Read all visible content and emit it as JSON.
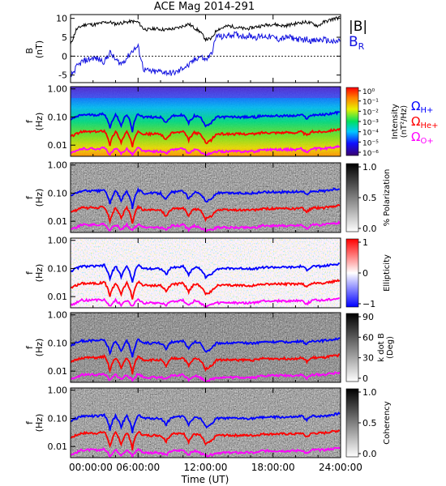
{
  "title": "ACE Mag 2014-291",
  "xaxis": {
    "label": "Time (UT)",
    "tick_labels": [
      "00:00:00",
      "06:00:00",
      "12:00:00",
      "18:00:00",
      "24:00:00"
    ],
    "tick_hours": [
      0,
      6,
      12,
      18,
      24
    ],
    "range_hours": [
      0,
      24
    ]
  },
  "colors": {
    "B": "#000000",
    "BR": "#1010e0",
    "H": "#0000ff",
    "He": "#ff0000",
    "O": "#ff00ff"
  },
  "chart_data": [
    {
      "type": "line",
      "panel": "field",
      "ylabel": "B\n(nT)",
      "ylim": [
        -7,
        11
      ],
      "yticks": [
        10,
        5,
        0,
        -5
      ],
      "legend": [
        "|B|",
        "B_R"
      ],
      "series": [
        {
          "name": "|B|",
          "x": [
            0,
            0.5,
            1,
            1.5,
            2,
            2.5,
            3,
            3.5,
            4,
            4.5,
            5,
            5.5,
            6,
            6.5,
            7,
            7.5,
            8,
            8.5,
            9,
            9.5,
            10,
            10.5,
            11,
            11.5,
            12,
            12.5,
            13,
            13.5,
            14,
            14.5,
            15,
            15.5,
            16,
            16.5,
            17,
            17.5,
            18,
            18.5,
            19,
            19.5,
            20,
            20.5,
            21,
            21.5,
            22,
            22.5,
            23,
            23.5,
            24
          ],
          "values": [
            3.0,
            7.0,
            8.0,
            8.5,
            8.3,
            8.6,
            8.9,
            9.0,
            8.5,
            8.8,
            9.0,
            9.2,
            9.0,
            7.2,
            7.0,
            7.3,
            7.1,
            7.0,
            7.2,
            7.4,
            8.0,
            8.5,
            7.5,
            6.5,
            4.5,
            4.5,
            7.0,
            7.5,
            8.0,
            7.8,
            7.5,
            7.2,
            7.4,
            7.8,
            8.0,
            8.3,
            8.5,
            8.2,
            8.0,
            8.3,
            8.6,
            8.9,
            9.0,
            8.6,
            8.0,
            9.0,
            9.5,
            10.0,
            10.2
          ]
        },
        {
          "name": "B_R",
          "x": [
            0,
            0.5,
            1,
            1.5,
            2,
            2.5,
            3,
            3.5,
            4,
            4.5,
            5,
            5.5,
            6,
            6.5,
            7,
            7.5,
            8,
            8.5,
            9,
            9.5,
            10,
            10.5,
            11,
            11.5,
            12,
            12.5,
            13,
            13.5,
            14,
            14.5,
            15,
            15.5,
            16,
            16.5,
            17,
            17.5,
            18,
            18.5,
            19,
            19.5,
            20,
            20.5,
            21,
            21.5,
            22,
            22.5,
            23,
            23.5,
            24
          ],
          "values": [
            -5.5,
            -3.0,
            -1.5,
            -1.0,
            -0.5,
            -0.8,
            -1.5,
            1.0,
            -1.0,
            -2.0,
            -0.5,
            1.5,
            2.5,
            -3.5,
            -4.0,
            -4.2,
            -4.0,
            -4.3,
            -4.5,
            -4.2,
            -3.0,
            -2.5,
            -1.0,
            0.0,
            -1.0,
            0.5,
            5.5,
            5.0,
            5.5,
            5.8,
            5.5,
            5.3,
            5.4,
            5.0,
            5.3,
            5.2,
            5.0,
            4.5,
            4.8,
            5.0,
            4.6,
            4.3,
            4.5,
            4.0,
            4.2,
            4.4,
            4.0,
            3.6,
            4.3
          ]
        }
      ]
    },
    {
      "type": "heatmap",
      "panel": "intensity",
      "ylabel": "f\n(Hz)",
      "ylim_log": [
        0.004,
        1.2
      ],
      "yticks": [
        "1.00",
        "0.10",
        "0.01"
      ],
      "colorbar": {
        "label": "Intensity (nT²/Hz)",
        "tick_labels": [
          "10⁰",
          "10⁻¹",
          "10⁻²",
          "10⁻³",
          "10⁻⁴",
          "10⁻⁵",
          "10⁻⁶"
        ],
        "scale": "rainbow"
      },
      "overlays": [
        "Ω_H+",
        "Ω_He+",
        "Ω_O+"
      ]
    },
    {
      "type": "heatmap",
      "panel": "polarization",
      "ylabel": "f\n(Hz)",
      "yticks": [
        "1.00",
        "0.10",
        "0.01"
      ],
      "colorbar": {
        "label": "% Polarization",
        "tick_labels": [
          "1.0",
          "0.5",
          "0.0"
        ],
        "scale": "gray"
      }
    },
    {
      "type": "heatmap",
      "panel": "ellipticity",
      "ylabel": "f\n(Hz)",
      "yticks": [
        "1.00",
        "0.10",
        "0.01"
      ],
      "colorbar": {
        "label": "Ellipticity",
        "tick_labels": [
          "1",
          "0",
          "−1"
        ],
        "scale": "red-white-blue"
      }
    },
    {
      "type": "heatmap",
      "panel": "kdotb",
      "ylabel": "f\n(Hz)",
      "yticks": [
        "1.00",
        "0.10",
        "0.01"
      ],
      "colorbar": {
        "label": "k dot B\n(Deg)",
        "tick_labels": [
          "90",
          "60",
          "30",
          "0"
        ],
        "scale": "gray"
      }
    },
    {
      "type": "heatmap",
      "panel": "coherency",
      "ylabel": "f\n(Hz)",
      "yticks": [
        "1.00",
        "0.10",
        "0.01"
      ],
      "colorbar": {
        "label": "Coherency",
        "tick_labels": [
          "1.0",
          "0.5",
          "0.0"
        ],
        "scale": "gray"
      }
    },
    {
      "type": "line",
      "panel": "gyrofrequencies",
      "note_units": "Hz",
      "series": [
        {
          "name": "Ω_H+",
          "x": [
            0,
            0.5,
            1,
            1.5,
            2,
            2.5,
            3,
            3.5,
            4,
            4.5,
            5,
            5.5,
            6,
            6.5,
            7,
            7.5,
            8,
            8.5,
            9,
            9.5,
            10,
            10.5,
            11,
            11.5,
            12,
            12.5,
            13,
            13.5,
            14,
            14.5,
            15,
            15.5,
            16,
            16.5,
            17,
            17.5,
            18,
            18.5,
            19,
            19.5,
            20,
            20.5,
            21,
            21.5,
            22,
            22.5,
            23,
            23.5,
            24
          ],
          "values": [
            0.08,
            0.1,
            0.12,
            0.12,
            0.12,
            0.12,
            0.13,
            0.04,
            0.12,
            0.05,
            0.12,
            0.03,
            0.13,
            0.1,
            0.1,
            0.1,
            0.1,
            0.06,
            0.11,
            0.11,
            0.12,
            0.06,
            0.11,
            0.1,
            0.05,
            0.06,
            0.1,
            0.1,
            0.1,
            0.1,
            0.1,
            0.1,
            0.1,
            0.1,
            0.11,
            0.11,
            0.11,
            0.11,
            0.11,
            0.11,
            0.11,
            0.12,
            0.09,
            0.12,
            0.12,
            0.12,
            0.13,
            0.14,
            0.15
          ]
        },
        {
          "name": "Ω_He+",
          "x": [
            0,
            0.5,
            1,
            1.5,
            2,
            2.5,
            3,
            3.5,
            4,
            4.5,
            5,
            5.5,
            6,
            6.5,
            7,
            7.5,
            8,
            8.5,
            9,
            9.5,
            10,
            10.5,
            11,
            11.5,
            12,
            12.5,
            13,
            13.5,
            14,
            14.5,
            15,
            15.5,
            16,
            16.5,
            17,
            17.5,
            18,
            18.5,
            19,
            19.5,
            20,
            20.5,
            21,
            21.5,
            22,
            22.5,
            23,
            23.5,
            24
          ],
          "values": [
            0.02,
            0.025,
            0.03,
            0.03,
            0.03,
            0.03,
            0.033,
            0.01,
            0.03,
            0.012,
            0.03,
            0.008,
            0.033,
            0.025,
            0.025,
            0.025,
            0.025,
            0.015,
            0.028,
            0.028,
            0.03,
            0.015,
            0.028,
            0.025,
            0.012,
            0.015,
            0.025,
            0.025,
            0.025,
            0.025,
            0.025,
            0.025,
            0.025,
            0.025,
            0.028,
            0.028,
            0.028,
            0.028,
            0.028,
            0.028,
            0.028,
            0.03,
            0.022,
            0.03,
            0.03,
            0.03,
            0.033,
            0.035,
            0.038
          ]
        },
        {
          "name": "Ω_O+",
          "x": [
            0,
            0.5,
            1,
            1.5,
            2,
            2.5,
            3,
            3.5,
            4,
            4.5,
            5,
            5.5,
            6,
            6.5,
            7,
            7.5,
            8,
            8.5,
            9,
            9.5,
            10,
            10.5,
            11,
            11.5,
            12,
            12.5,
            13,
            13.5,
            14,
            14.5,
            15,
            15.5,
            16,
            16.5,
            17,
            17.5,
            18,
            18.5,
            19,
            19.5,
            20,
            20.5,
            21,
            21.5,
            22,
            22.5,
            23,
            23.5,
            24
          ],
          "values": [
            0.005,
            0.006,
            0.0075,
            0.0075,
            0.0075,
            0.0075,
            0.008,
            0.0045,
            0.0075,
            0.005,
            0.0075,
            0.0045,
            0.008,
            0.006,
            0.006,
            0.006,
            0.006,
            0.005,
            0.007,
            0.007,
            0.0075,
            0.005,
            0.007,
            0.006,
            0.0045,
            0.005,
            0.006,
            0.006,
            0.006,
            0.006,
            0.006,
            0.006,
            0.006,
            0.006,
            0.007,
            0.007,
            0.007,
            0.007,
            0.007,
            0.007,
            0.007,
            0.0075,
            0.0055,
            0.0075,
            0.0075,
            0.0075,
            0.008,
            0.0085,
            0.009
          ]
        }
      ]
    }
  ],
  "legend_labels": {
    "B_abs": "|B|",
    "BR_main": "B",
    "BR_sub": "R",
    "omega": "Ω",
    "H_sub": "H+",
    "He_sub": "He+",
    "O_sub": "O+"
  }
}
